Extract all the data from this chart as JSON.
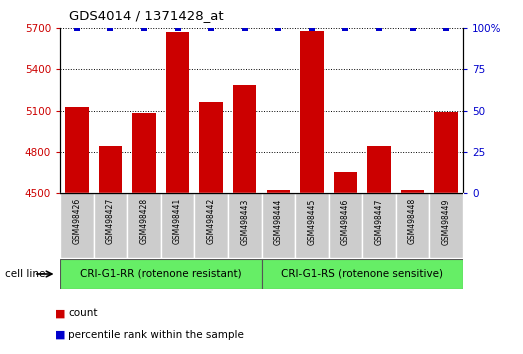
{
  "title": "GDS4014 / 1371428_at",
  "samples": [
    "GSM498426",
    "GSM498427",
    "GSM498428",
    "GSM498441",
    "GSM498442",
    "GSM498443",
    "GSM498444",
    "GSM498445",
    "GSM498446",
    "GSM498447",
    "GSM498448",
    "GSM498449"
  ],
  "counts": [
    5130,
    4840,
    5080,
    5670,
    5160,
    5290,
    4520,
    5680,
    4650,
    4840,
    4520,
    5090
  ],
  "percentile_ranks": [
    100,
    100,
    100,
    100,
    100,
    100,
    100,
    100,
    100,
    100,
    100,
    100
  ],
  "ylim_left": [
    4500,
    5700
  ],
  "ylim_right": [
    0,
    100
  ],
  "yticks_left": [
    4500,
    4800,
    5100,
    5400,
    5700
  ],
  "yticks_right": [
    0,
    25,
    50,
    75,
    100
  ],
  "bar_color": "#cc0000",
  "percentile_color": "#0000cc",
  "group1_label": "CRI-G1-RR (rotenone resistant)",
  "group2_label": "CRI-G1-RS (rotenone sensitive)",
  "group1_indices": [
    0,
    1,
    2,
    3,
    4,
    5
  ],
  "group2_indices": [
    6,
    7,
    8,
    9,
    10,
    11
  ],
  "group_bg_color": "#66ee66",
  "tick_bg_color": "#cccccc",
  "xlabel_label": "cell line",
  "legend_count_label": "count",
  "legend_percentile_label": "percentile rank within the sample",
  "bg_color": "#ffffff"
}
